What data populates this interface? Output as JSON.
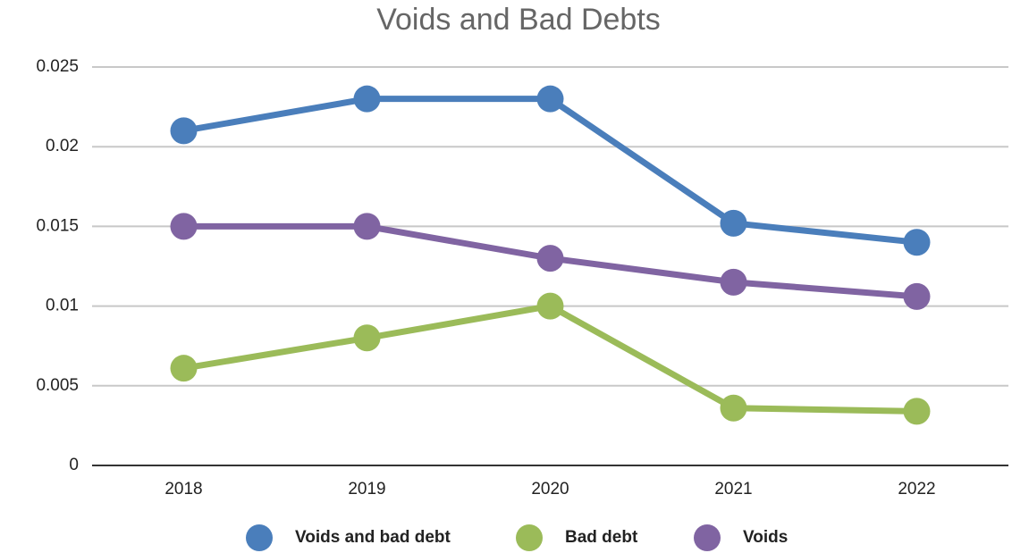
{
  "chart_data": {
    "type": "line",
    "title": "Voids and Bad Debts",
    "categories": [
      "2018",
      "2019",
      "2020",
      "2021",
      "2022"
    ],
    "series": [
      {
        "name": "Voids and bad debt",
        "color": "#4a7ebb",
        "values": [
          0.021,
          0.023,
          0.023,
          0.0152,
          0.014
        ]
      },
      {
        "name": "Bad debt",
        "color": "#9bbb59",
        "values": [
          0.0061,
          0.008,
          0.01,
          0.0036,
          0.0034
        ]
      },
      {
        "name": "Voids",
        "color": "#8064a2",
        "values": [
          0.015,
          0.015,
          0.013,
          0.0115,
          0.0106
        ]
      }
    ],
    "ylim": [
      0,
      0.025
    ],
    "yticks": [
      0,
      0.005,
      0.01,
      0.015,
      0.02,
      0.025
    ],
    "grid": true,
    "legend": "bottom"
  }
}
